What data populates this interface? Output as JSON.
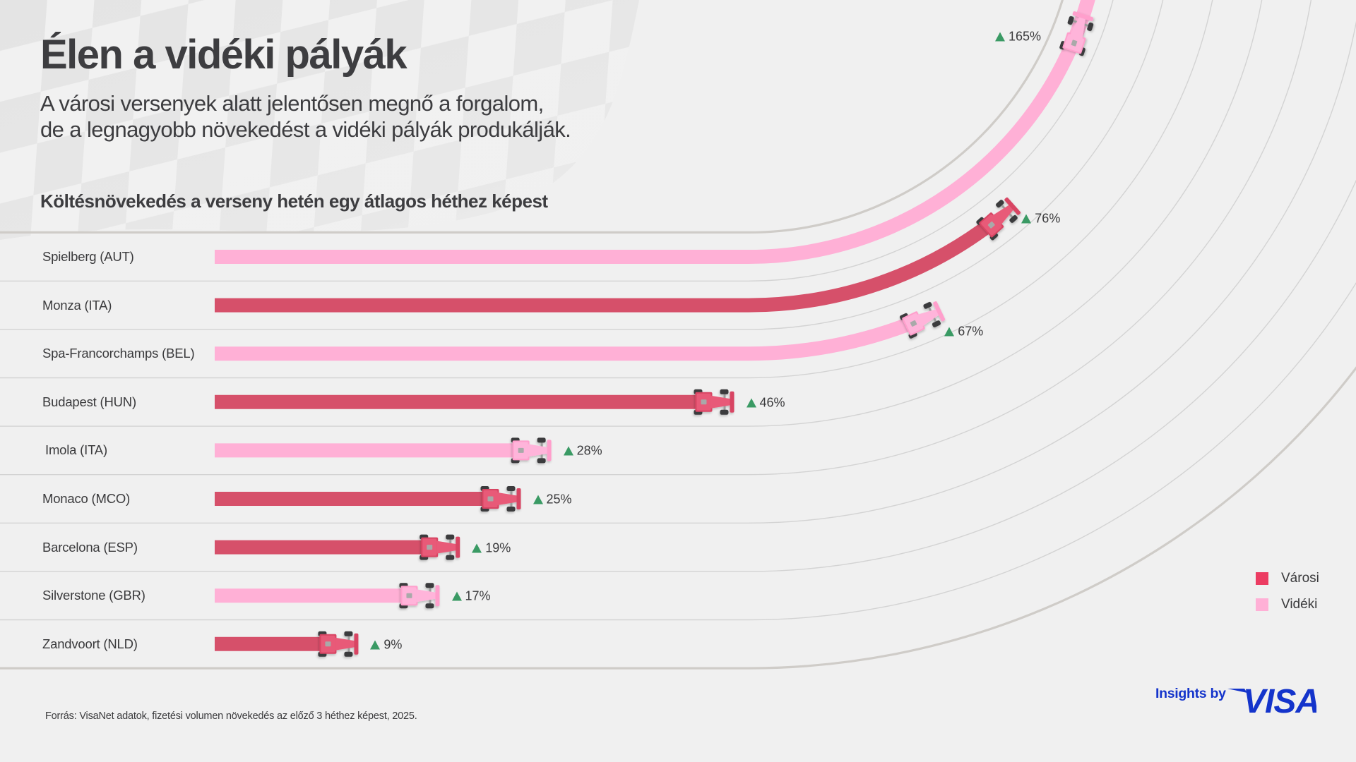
{
  "header": {
    "title": "Élen a vidéki pályák",
    "subtitle_line1": "A városi versenyek alatt jelentősen megnő a forgalom,",
    "subtitle_line2": "de a legnagyobb növekedést a vidéki pályák produkálják."
  },
  "colors": {
    "varosi_bar": "#d6506a",
    "varosi_car": "#e85a78",
    "videki_bar": "#ffb0d6",
    "videki_car": "#ffb4da",
    "legend_varosi": "#ec3c62",
    "legend_videki": "#ffb0d6",
    "up_arrow": "#3a9a64",
    "brand_blue": "#1434cb"
  },
  "chart_data": {
    "type": "bar",
    "orientation": "horizontal",
    "title": "Költésnövekedés a verseny hetén egy átlagos héthez képest",
    "xlabel": "",
    "ylabel": "",
    "unit": "%",
    "categories": [
      "Spielberg (AUT)",
      "Monza (ITA)",
      "Spa-Francorchamps (BEL)",
      "Budapest (HUN)",
      "Imola (ITA)",
      "Monaco (MCO)",
      "Barcelona (ESP)",
      "Silverstone (GBR)",
      "Zandvoort (NLD)"
    ],
    "values": [
      165,
      76,
      67,
      46,
      28,
      25,
      19,
      17,
      9
    ],
    "value_labels": [
      "165%",
      "76%",
      "67%",
      "46%",
      "28%",
      "25%",
      "19%",
      "17%",
      "9%"
    ],
    "track_type": [
      "Vidéki",
      "Városi",
      "Vidéki",
      "Városi",
      "Vidéki",
      "Városi",
      "Városi",
      "Vidéki",
      "Városi"
    ],
    "legend": {
      "position": "right",
      "entries": [
        {
          "name": "Városi",
          "key": "Városi"
        },
        {
          "name": "Vidéki",
          "key": "Vidéki"
        }
      ]
    },
    "grid": false
  },
  "footer": {
    "source": "Forrás: VisaNet adatok, fizetési volumen növekedés az előző 3 héthez képest, 2025.",
    "brand_prefix": "Insights by",
    "brand_name": "VISA"
  }
}
